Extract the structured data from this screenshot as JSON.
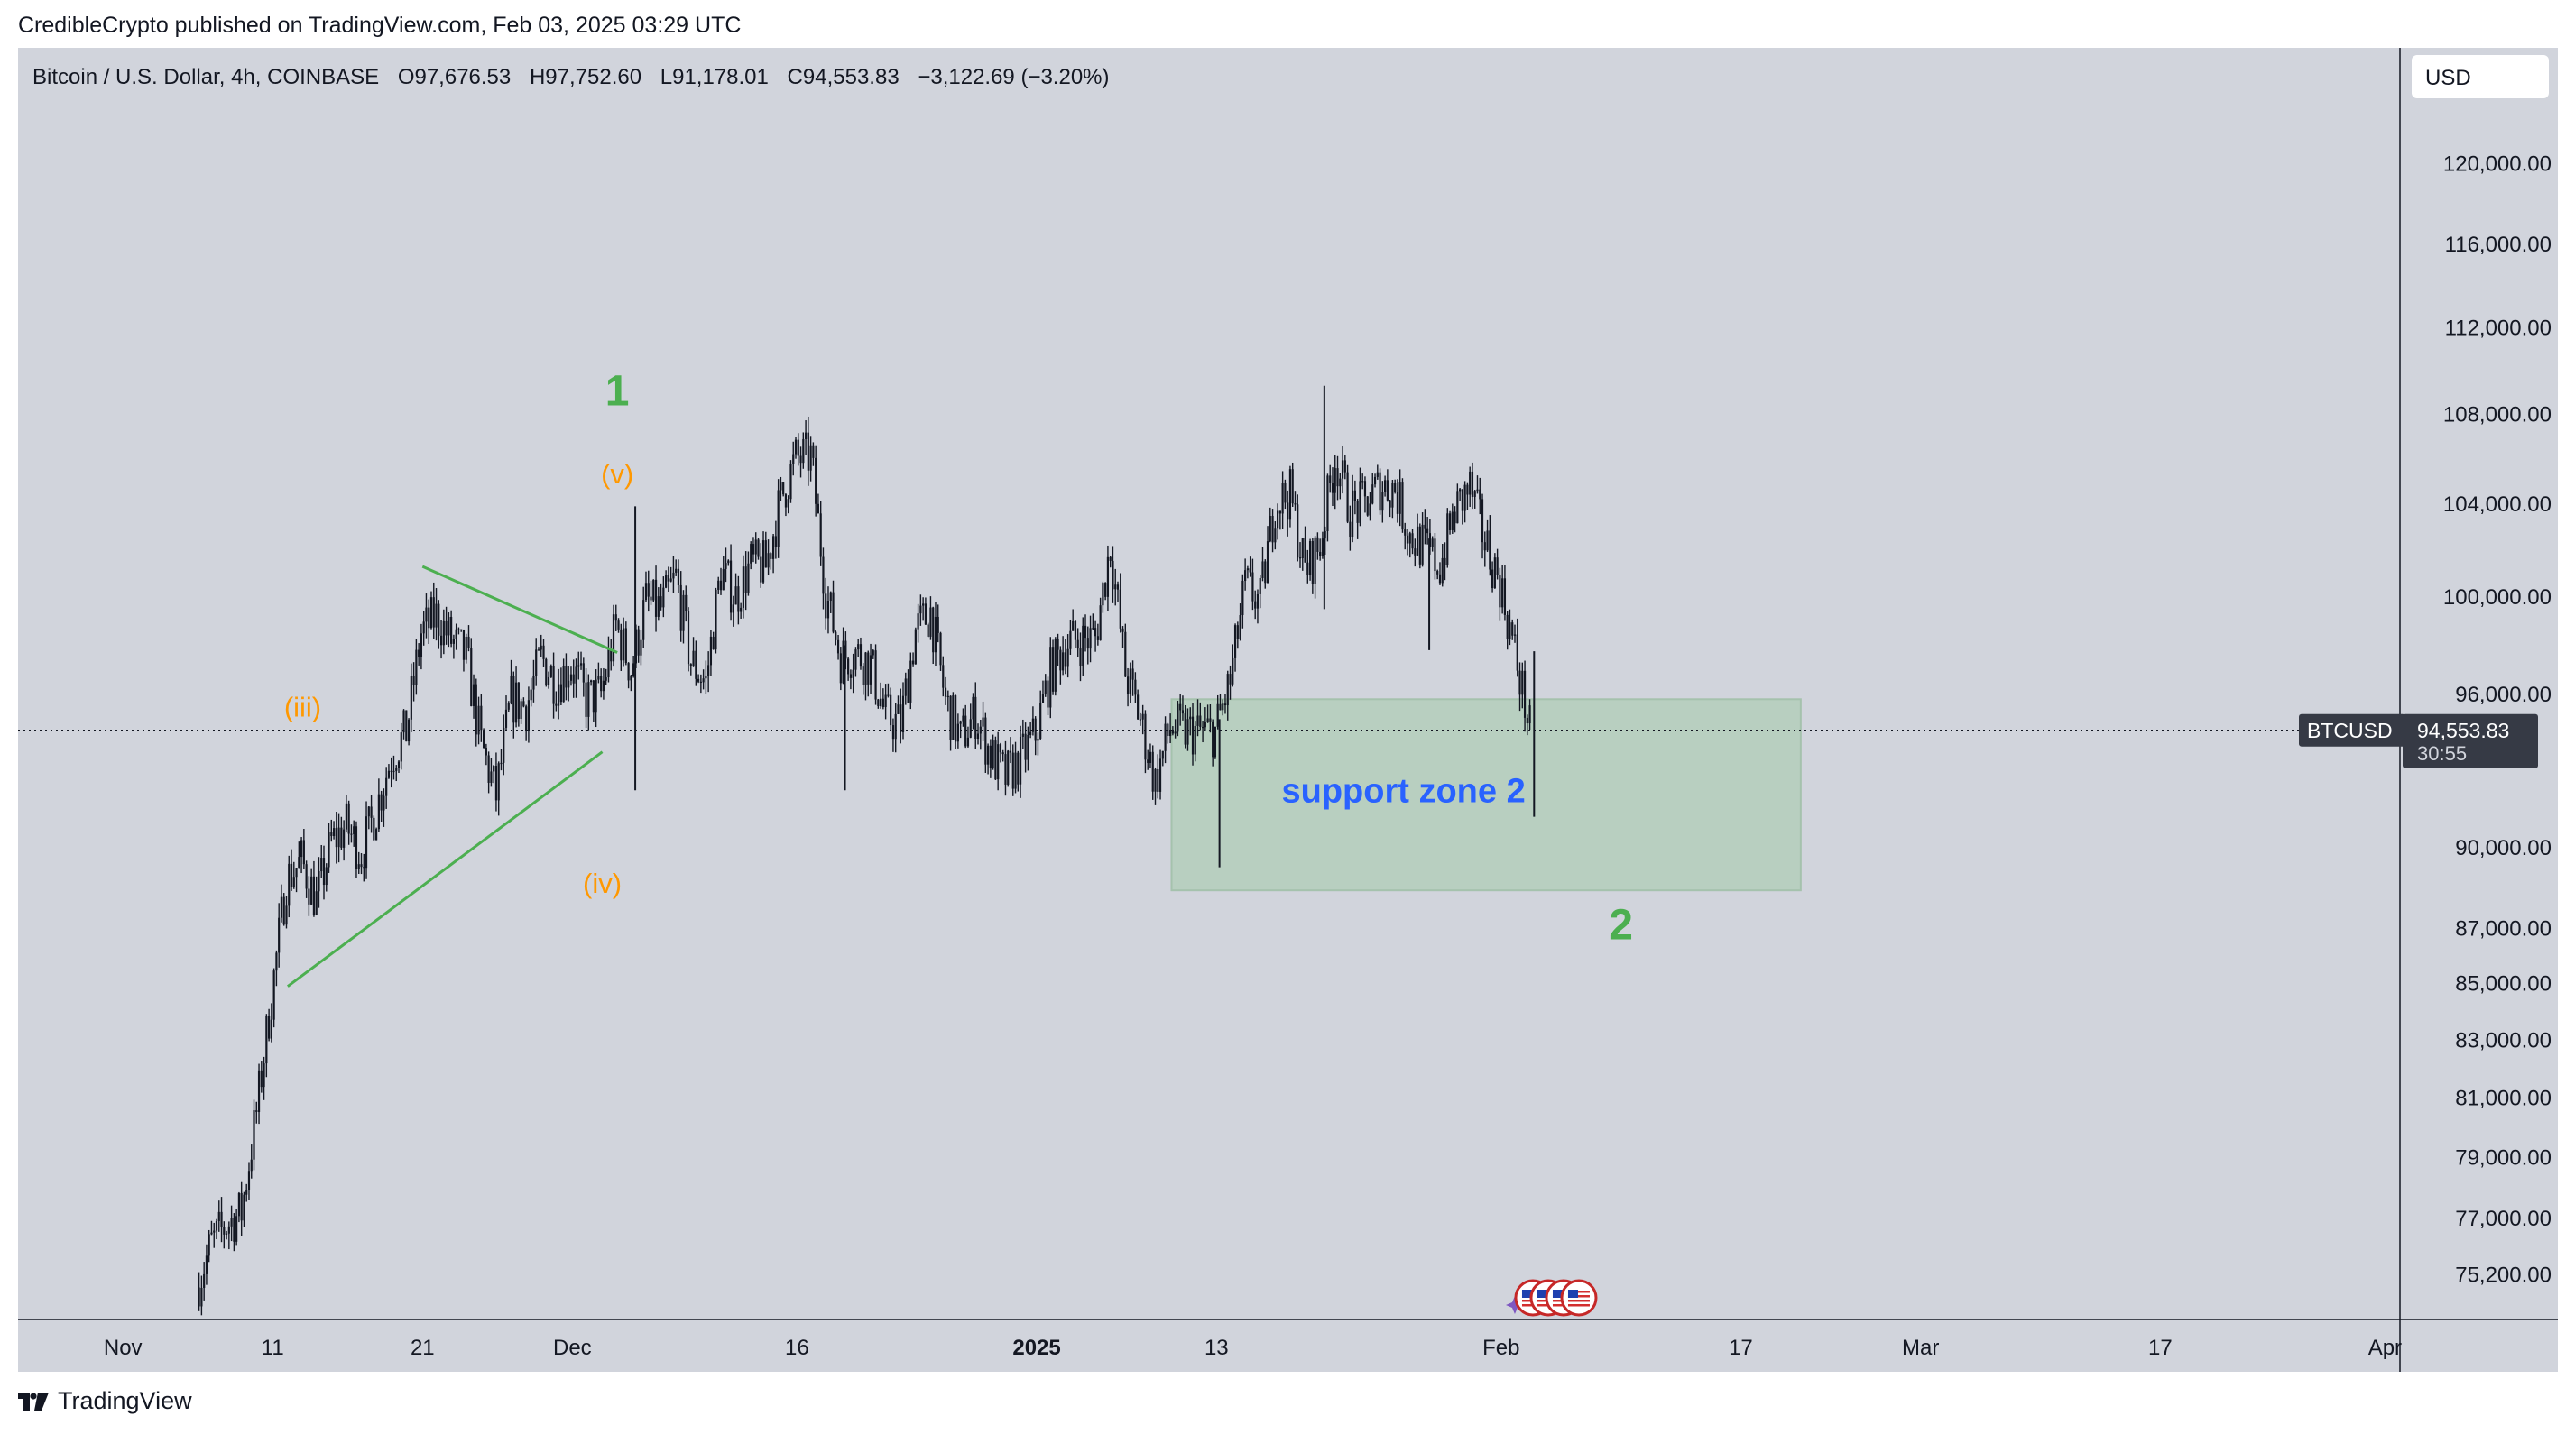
{
  "header": {
    "publisher_line": "CredibleCrypto published on TradingView.com, Feb 03, 2025 03:29 UTC"
  },
  "legend": {
    "symbol_desc": "Bitcoin / U.S. Dollar, 4h, COINBASE",
    "open_label": "O",
    "open_value": "97,676.53",
    "high_label": "H",
    "high_value": "97,752.60",
    "low_label": "L",
    "low_value": "91,178.01",
    "close_label": "C",
    "close_value": "94,553.83",
    "change": "−3,122.69 (−3.20%)"
  },
  "currency_button": "USD",
  "price_tag": {
    "symbol": "BTCUSD",
    "price": "94,553.83",
    "countdown": "30:55"
  },
  "footer": {
    "brand": "TradingView"
  },
  "colors": {
    "background": "#d1d4dc",
    "candle": "#131722",
    "wave_green": "#4caf50",
    "wave_orange": "#ff9800",
    "zone_fill": "#b8cfc0",
    "zone_label": "#2962ff",
    "price_tag_bg": "#363a45"
  },
  "chart_data": {
    "type": "candlestick",
    "title": "",
    "symbol": "BTCUSD",
    "interval": "4h",
    "exchange": "COINBASE",
    "scale": "log",
    "grid": false,
    "y_ticks": [
      120000,
      116000,
      112000,
      108000,
      104000,
      100000,
      96000,
      90000,
      87000,
      85000,
      83000,
      81000,
      79000,
      77000,
      75200
    ],
    "y_tick_labels": [
      "120,000.00",
      "116,000.00",
      "112,000.00",
      "108,000.00",
      "104,000.00",
      "100,000.00",
      "96,000.00",
      "90,000.00",
      "87,000.00",
      "85,000.00",
      "83,000.00",
      "81,000.00",
      "79,000.00",
      "77,000.00",
      "75,200.00"
    ],
    "ylim": [
      73800,
      126000
    ],
    "xlim": [
      "2024-10-25",
      "2025-04-02"
    ],
    "x_ticks": [
      {
        "date": "2024-11-01",
        "label": "Nov",
        "bold": false
      },
      {
        "date": "2024-11-11",
        "label": "11",
        "bold": false
      },
      {
        "date": "2024-11-21",
        "label": "21",
        "bold": false
      },
      {
        "date": "2024-12-01",
        "label": "Dec",
        "bold": false
      },
      {
        "date": "2024-12-16",
        "label": "16",
        "bold": false
      },
      {
        "date": "2025-01-01",
        "label": "2025",
        "bold": true
      },
      {
        "date": "2025-01-13",
        "label": "13",
        "bold": false
      },
      {
        "date": "2025-02-01",
        "label": "Feb",
        "bold": false
      },
      {
        "date": "2025-02-17",
        "label": "17",
        "bold": false
      },
      {
        "date": "2025-03-01",
        "label": "Mar",
        "bold": false
      },
      {
        "date": "2025-03-17",
        "label": "17",
        "bold": false
      },
      {
        "date": "2025-04-01",
        "label": "Apr",
        "bold": false
      }
    ],
    "price_path": [
      [
        "2024-11-06",
        74800
      ],
      [
        "2024-11-07",
        76200
      ],
      [
        "2024-11-08",
        76800
      ],
      [
        "2024-11-09",
        77200
      ],
      [
        "2024-11-10",
        80500
      ],
      [
        "2024-11-11",
        84500
      ],
      [
        "2024-11-12",
        88800
      ],
      [
        "2024-11-13",
        89500
      ],
      [
        "2024-11-14",
        88000
      ],
      [
        "2024-11-15",
        90200
      ],
      [
        "2024-11-16",
        90800
      ],
      [
        "2024-11-17",
        89800
      ],
      [
        "2024-11-18",
        91500
      ],
      [
        "2024-11-19",
        93500
      ],
      [
        "2024-11-20",
        94500
      ],
      [
        "2024-11-21",
        98500
      ],
      [
        "2024-11-22",
        99200
      ],
      [
        "2024-11-23",
        98200
      ],
      [
        "2024-11-24",
        97500
      ],
      [
        "2024-11-25",
        94000
      ],
      [
        "2024-11-26",
        92000
      ],
      [
        "2024-11-27",
        95800
      ],
      [
        "2024-11-28",
        95500
      ],
      [
        "2024-11-29",
        97500
      ],
      [
        "2024-11-30",
        96500
      ],
      [
        "2024-12-01",
        97200
      ],
      [
        "2024-12-02",
        95800
      ],
      [
        "2024-12-03",
        96000
      ],
      [
        "2024-12-04",
        98800
      ],
      [
        "2024-12-05",
        97000
      ],
      [
        "2024-12-06",
        99800
      ],
      [
        "2024-12-07",
        99500
      ],
      [
        "2024-12-08",
        100800
      ],
      [
        "2024-12-09",
        97300
      ],
      [
        "2024-12-10",
        96500
      ],
      [
        "2024-12-11",
        101100
      ],
      [
        "2024-12-12",
        100000
      ],
      [
        "2024-12-13",
        101400
      ],
      [
        "2024-12-14",
        101300
      ],
      [
        "2024-12-15",
        104200
      ],
      [
        "2024-12-16",
        106000
      ],
      [
        "2024-12-17",
        106100
      ],
      [
        "2024-12-18",
        100200
      ],
      [
        "2024-12-19",
        97500
      ],
      [
        "2024-12-20",
        97700
      ],
      [
        "2024-12-21",
        97200
      ],
      [
        "2024-12-22",
        95100
      ],
      [
        "2024-12-23",
        94800
      ],
      [
        "2024-12-24",
        98600
      ],
      [
        "2024-12-25",
        99400
      ],
      [
        "2024-12-26",
        95700
      ],
      [
        "2024-12-27",
        94200
      ],
      [
        "2024-12-28",
        95200
      ],
      [
        "2024-12-29",
        93600
      ],
      [
        "2024-12-30",
        92700
      ],
      [
        "2024-12-31",
        93400
      ],
      [
        "2025-01-01",
        94400
      ],
      [
        "2025-01-02",
        96900
      ],
      [
        "2025-01-03",
        98100
      ],
      [
        "2025-01-04",
        98200
      ],
      [
        "2025-01-05",
        98300
      ],
      [
        "2025-01-06",
        102200
      ],
      [
        "2025-01-07",
        96900
      ],
      [
        "2025-01-08",
        95000
      ],
      [
        "2025-01-09",
        92500
      ],
      [
        "2025-01-10",
        94700
      ],
      [
        "2025-01-11",
        94500
      ],
      [
        "2025-01-12",
        94500
      ],
      [
        "2025-01-13",
        94500
      ],
      [
        "2025-01-14",
        96500
      ],
      [
        "2025-01-15",
        100500
      ],
      [
        "2025-01-16",
        99800
      ],
      [
        "2025-01-17",
        104100
      ],
      [
        "2025-01-18",
        104400
      ],
      [
        "2025-01-19",
        101100
      ],
      [
        "2025-01-20",
        102200
      ],
      [
        "2025-01-21",
        106100
      ],
      [
        "2025-01-22",
        103700
      ],
      [
        "2025-01-23",
        104000
      ],
      [
        "2025-01-24",
        104800
      ],
      [
        "2025-01-25",
        104700
      ],
      [
        "2025-01-26",
        102600
      ],
      [
        "2025-01-27",
        102100
      ],
      [
        "2025-01-28",
        101300
      ],
      [
        "2025-01-29",
        103700
      ],
      [
        "2025-01-30",
        104700
      ],
      [
        "2025-01-31",
        102400
      ],
      [
        "2025-02-01",
        100600
      ],
      [
        "2025-02-02",
        97700
      ],
      [
        "2025-02-03",
        94554
      ]
    ],
    "spikes": [
      [
        "2024-12-05",
        103900,
        92200
      ],
      [
        "2024-12-19",
        98000,
        92200
      ],
      [
        "2025-01-13",
        95000,
        89260
      ],
      [
        "2025-01-20",
        109300,
        99500
      ],
      [
        "2025-01-27",
        102500,
        97800
      ],
      [
        "2025-02-03",
        97752.6,
        91178
      ]
    ],
    "support_zone": {
      "label": "support zone 2",
      "x_start": "2025-01-10",
      "x_end": "2025-02-21",
      "price_top": 95800,
      "price_bottom": 88400
    },
    "trendlines": [
      {
        "name": "triangle-upper",
        "from": [
          "2024-11-21",
          101300
        ],
        "to": [
          "2024-12-04",
          97700
        ]
      },
      {
        "name": "triangle-lower",
        "from": [
          "2024-11-12",
          84900
        ],
        "to": [
          "2024-12-03",
          93700
        ]
      }
    ],
    "wave_labels": [
      {
        "text": "1",
        "date": "2024-12-04",
        "price": 108400,
        "color": "green",
        "size": "large"
      },
      {
        "text": "(v)",
        "date": "2024-12-04",
        "price": 104900,
        "color": "orange",
        "size": "small"
      },
      {
        "text": "(iii)",
        "date": "2024-11-13",
        "price": 95100,
        "color": "orange",
        "size": "small"
      },
      {
        "text": "(iv)",
        "date": "2024-12-03",
        "price": 88300,
        "color": "orange",
        "size": "small"
      },
      {
        "text": "2",
        "date": "2025-02-09",
        "price": 86600,
        "color": "green",
        "size": "large"
      }
    ],
    "last_price": 94553.83
  }
}
